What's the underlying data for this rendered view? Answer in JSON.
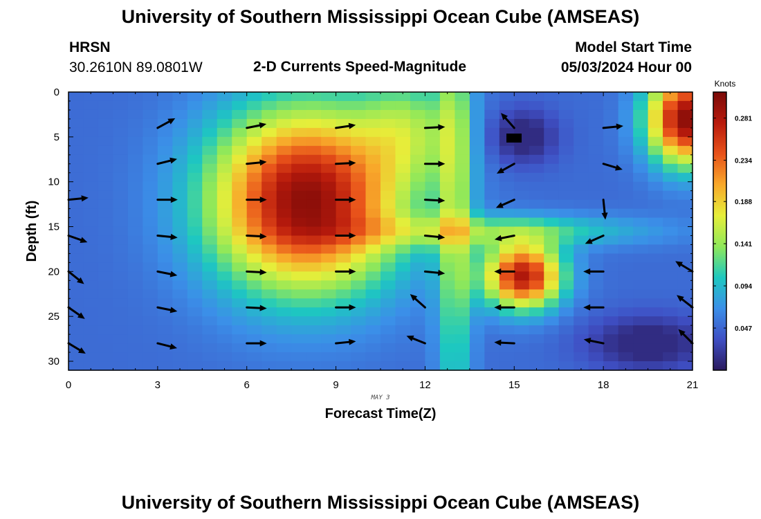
{
  "header": {
    "title": "University of Southern Mississippi Ocean Cube (AMSEAS)",
    "footer_title": "University of Southern Mississippi Ocean Cube (AMSEAS)",
    "station": "HRSN",
    "location": "30.2610N  89.0801W",
    "start_label": "Model Start Time",
    "start_value": "05/03/2024 Hour 00"
  },
  "chart_data": {
    "type": "heatmap",
    "title": "2-D Currents Speed-Magnitude",
    "xlabel": "Forecast Time(Z)",
    "ylabel": "Depth (ft)",
    "date_note": "MAY 3",
    "x_ticks": [
      0,
      3,
      6,
      9,
      12,
      15,
      18,
      21
    ],
    "y_ticks": [
      0,
      5,
      10,
      15,
      20,
      25,
      30
    ],
    "xlim": [
      0,
      21
    ],
    "ylim": [
      0,
      31
    ],
    "colorbar": {
      "title": "Knots",
      "ticks": [
        "0.281",
        "0.234",
        "0.188",
        "0.141",
        "0.094",
        "0.047"
      ],
      "tick_values": [
        0.281,
        0.234,
        0.188,
        0.141,
        0.094,
        0.047
      ],
      "range": [
        0.0,
        0.31
      ],
      "colors": [
        "#2a1a5e",
        "#3f4fc4",
        "#3b8fe8",
        "#1dc8c0",
        "#8fe85a",
        "#e6ee3a",
        "#f8a82a",
        "#e8521a",
        "#b81a0c",
        "#7a0a08"
      ]
    },
    "arrow_x": [
      0,
      3,
      6,
      9,
      12,
      15,
      18,
      21
    ],
    "arrow_depths": [
      4,
      8,
      12,
      16,
      20,
      24,
      28
    ],
    "arrows": [
      {
        "x": 3,
        "depth": 4,
        "u": 1,
        "v": 0.55
      },
      {
        "x": 6,
        "depth": 4,
        "u": 1,
        "v": 0.2
      },
      {
        "x": 9,
        "depth": 4,
        "u": 1,
        "v": 0.15
      },
      {
        "x": 12,
        "depth": 4,
        "u": 1,
        "v": 0.05
      },
      {
        "x": 15,
        "depth": 4,
        "u": -0.8,
        "v": 0.9
      },
      {
        "x": 18,
        "depth": 4,
        "u": 1,
        "v": 0.1
      },
      {
        "x": 3,
        "depth": 8,
        "u": 1,
        "v": 0.25
      },
      {
        "x": 6,
        "depth": 8,
        "u": 1,
        "v": 0.1
      },
      {
        "x": 9,
        "depth": 8,
        "u": 1,
        "v": 0.05
      },
      {
        "x": 12,
        "depth": 8,
        "u": 1,
        "v": 0
      },
      {
        "x": 15,
        "depth": 8,
        "u": -0.9,
        "v": -0.5
      },
      {
        "x": 18,
        "depth": 8,
        "u": 1,
        "v": -0.3
      },
      {
        "x": 0,
        "depth": 12,
        "u": 1,
        "v": 0.1
      },
      {
        "x": 3,
        "depth": 12,
        "u": 1,
        "v": 0
      },
      {
        "x": 6,
        "depth": 12,
        "u": 1,
        "v": 0
      },
      {
        "x": 9,
        "depth": 12,
        "u": 1,
        "v": 0
      },
      {
        "x": 12,
        "depth": 12,
        "u": 1,
        "v": -0.05
      },
      {
        "x": 15,
        "depth": 12,
        "u": -0.9,
        "v": -0.4
      },
      {
        "x": 18,
        "depth": 12,
        "u": 0.1,
        "v": -1
      },
      {
        "x": 0,
        "depth": 16,
        "u": 1,
        "v": -0.35
      },
      {
        "x": 3,
        "depth": 16,
        "u": 1,
        "v": -0.1
      },
      {
        "x": 6,
        "depth": 16,
        "u": 1,
        "v": -0.05
      },
      {
        "x": 9,
        "depth": 16,
        "u": 1,
        "v": 0
      },
      {
        "x": 12,
        "depth": 16,
        "u": 1,
        "v": -0.1
      },
      {
        "x": 15,
        "depth": 16,
        "u": -1,
        "v": -0.2
      },
      {
        "x": 18,
        "depth": 16,
        "u": -0.9,
        "v": -0.4
      },
      {
        "x": 0,
        "depth": 20,
        "u": 1,
        "v": -0.8
      },
      {
        "x": 3,
        "depth": 20,
        "u": 1,
        "v": -0.2
      },
      {
        "x": 6,
        "depth": 20,
        "u": 1,
        "v": -0.05
      },
      {
        "x": 9,
        "depth": 20,
        "u": 1,
        "v": 0
      },
      {
        "x": 12,
        "depth": 20,
        "u": 1,
        "v": -0.1
      },
      {
        "x": 15,
        "depth": 20,
        "u": -1,
        "v": 0
      },
      {
        "x": 18,
        "depth": 20,
        "u": -1,
        "v": 0
      },
      {
        "x": 21,
        "depth": 20,
        "u": -1,
        "v": 0.6
      },
      {
        "x": 0,
        "depth": 24,
        "u": 1,
        "v": -0.7
      },
      {
        "x": 3,
        "depth": 24,
        "u": 1,
        "v": -0.2
      },
      {
        "x": 6,
        "depth": 24,
        "u": 1,
        "v": -0.05
      },
      {
        "x": 9,
        "depth": 24,
        "u": 1,
        "v": 0
      },
      {
        "x": 12,
        "depth": 24,
        "u": -0.9,
        "v": 0.8
      },
      {
        "x": 15,
        "depth": 24,
        "u": -1,
        "v": 0
      },
      {
        "x": 18,
        "depth": 24,
        "u": -1,
        "v": 0
      },
      {
        "x": 21,
        "depth": 24,
        "u": -0.9,
        "v": 0.7
      },
      {
        "x": 0,
        "depth": 28,
        "u": 1,
        "v": -0.6
      },
      {
        "x": 3,
        "depth": 28,
        "u": 1,
        "v": -0.25
      },
      {
        "x": 6,
        "depth": 28,
        "u": 1,
        "v": 0
      },
      {
        "x": 9,
        "depth": 28,
        "u": 1,
        "v": 0.1
      },
      {
        "x": 12,
        "depth": 28,
        "u": -1,
        "v": 0.4
      },
      {
        "x": 15,
        "depth": 28,
        "u": -1,
        "v": 0.05
      },
      {
        "x": 18,
        "depth": 28,
        "u": -1,
        "v": 0.2
      },
      {
        "x": 21,
        "depth": 28,
        "u": -0.8,
        "v": 0.8
      }
    ]
  }
}
